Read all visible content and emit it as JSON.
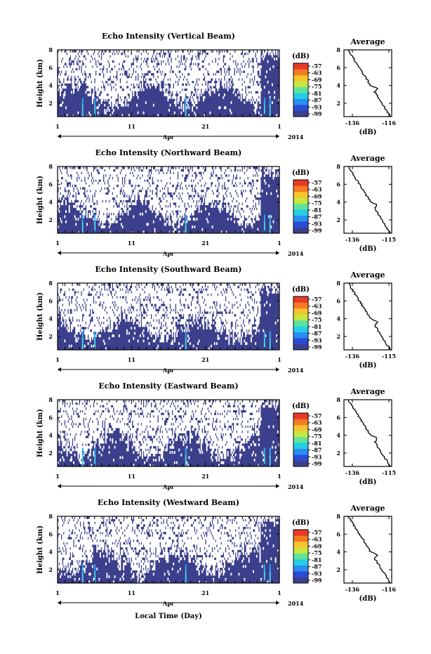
{
  "figure": {
    "xlabel": "Local Time (Day)",
    "month_label": "Apr",
    "year_label": "2014",
    "ylabel": "Height (km)",
    "colorbar_unit": "(dB)",
    "colorbar_ticks": [
      "-57",
      "-63",
      "-69",
      "-75",
      "-81",
      "-87",
      "-93",
      "-99"
    ],
    "colorbar_colors": [
      "#3b3f8c",
      "#2a4bd8",
      "#2a8ef0",
      "#26cde8",
      "#5fe39a",
      "#c6e640",
      "#f7c42e",
      "#f47a23",
      "#e83a26"
    ],
    "avg_title": "Average",
    "avg_xlabel": "(dB)",
    "x_tick_labels": [
      "1",
      "11",
      "21",
      "1"
    ],
    "background_color": "#3b3f8c"
  },
  "chart_data": [
    {
      "type": "heatmap",
      "title": "Echo Intensity (Vertical Beam)",
      "xlabel": "Local Time (Day)",
      "ylabel": "Height (km)",
      "x_ticks": [
        "1",
        "11",
        "21",
        "1"
      ],
      "y_ticks": [
        2,
        4,
        6,
        8
      ],
      "ylim": [
        0.5,
        8
      ],
      "colorbar": {
        "unit": "dB",
        "ticks": [
          -57,
          -63,
          -69,
          -75,
          -81,
          -87,
          -93,
          -99
        ]
      },
      "average_profile": {
        "title": "Average",
        "xlabel": "(dB)",
        "x_ticks": [
          -136,
          -116
        ],
        "xlim": [
          -136,
          -116
        ]
      }
    },
    {
      "type": "heatmap",
      "title": "Echo Intensity (Northward Beam)",
      "xlabel": "Local Time (Day)",
      "ylabel": "Height (km)",
      "x_ticks": [
        "1",
        "11",
        "21",
        "1"
      ],
      "y_ticks": [
        2,
        4,
        6,
        8
      ],
      "ylim": [
        0.5,
        8
      ],
      "colorbar": {
        "unit": "dB",
        "ticks": [
          -57,
          -63,
          -69,
          -75,
          -81,
          -87,
          -93,
          -99
        ]
      },
      "average_profile": {
        "title": "Average",
        "xlabel": "(dB)",
        "x_ticks": [
          -136,
          -115
        ],
        "xlim": [
          -136,
          -115
        ]
      }
    },
    {
      "type": "heatmap",
      "title": "Echo Intensity (Southward Beam)",
      "xlabel": "Local Time (Day)",
      "ylabel": "Height (km)",
      "x_ticks": [
        "1",
        "11",
        "21",
        "1"
      ],
      "y_ticks": [
        2,
        4,
        6,
        8
      ],
      "ylim": [
        0.5,
        8
      ],
      "colorbar": {
        "unit": "dB",
        "ticks": [
          -57,
          -63,
          -69,
          -75,
          -81,
          -87,
          -93,
          -99
        ]
      },
      "average_profile": {
        "title": "Average",
        "xlabel": "(dB)",
        "x_ticks": [
          -136,
          -115
        ],
        "xlim": [
          -136,
          -115
        ]
      }
    },
    {
      "type": "heatmap",
      "title": "Echo Intensity (Eastward Beam)",
      "xlabel": "Local Time (Day)",
      "ylabel": "Height (km)",
      "x_ticks": [
        "1",
        "11",
        "21",
        "1"
      ],
      "y_ticks": [
        2,
        4,
        6,
        8
      ],
      "ylim": [
        0.5,
        8
      ],
      "colorbar": {
        "unit": "dB",
        "ticks": [
          -57,
          -63,
          -69,
          -75,
          -81,
          -87,
          -93,
          -99
        ]
      },
      "average_profile": {
        "title": "Average",
        "xlabel": "(dB)",
        "x_ticks": [
          -136,
          -115
        ],
        "xlim": [
          -136,
          -115
        ]
      }
    },
    {
      "type": "heatmap",
      "title": "Echo Intensity (Westward Beam)",
      "xlabel": "Local Time (Day)",
      "ylabel": "Height (km)",
      "x_ticks": [
        "1",
        "11",
        "21",
        "1"
      ],
      "y_ticks": [
        2,
        4,
        6,
        8
      ],
      "ylim": [
        0.5,
        8
      ],
      "colorbar": {
        "unit": "dB",
        "ticks": [
          -57,
          -63,
          -69,
          -75,
          -81,
          -87,
          -93,
          -99
        ]
      },
      "average_profile": {
        "title": "Average",
        "xlabel": "(dB)",
        "x_ticks": [
          -136,
          -116
        ],
        "xlim": [
          -136,
          -116
        ]
      }
    }
  ]
}
